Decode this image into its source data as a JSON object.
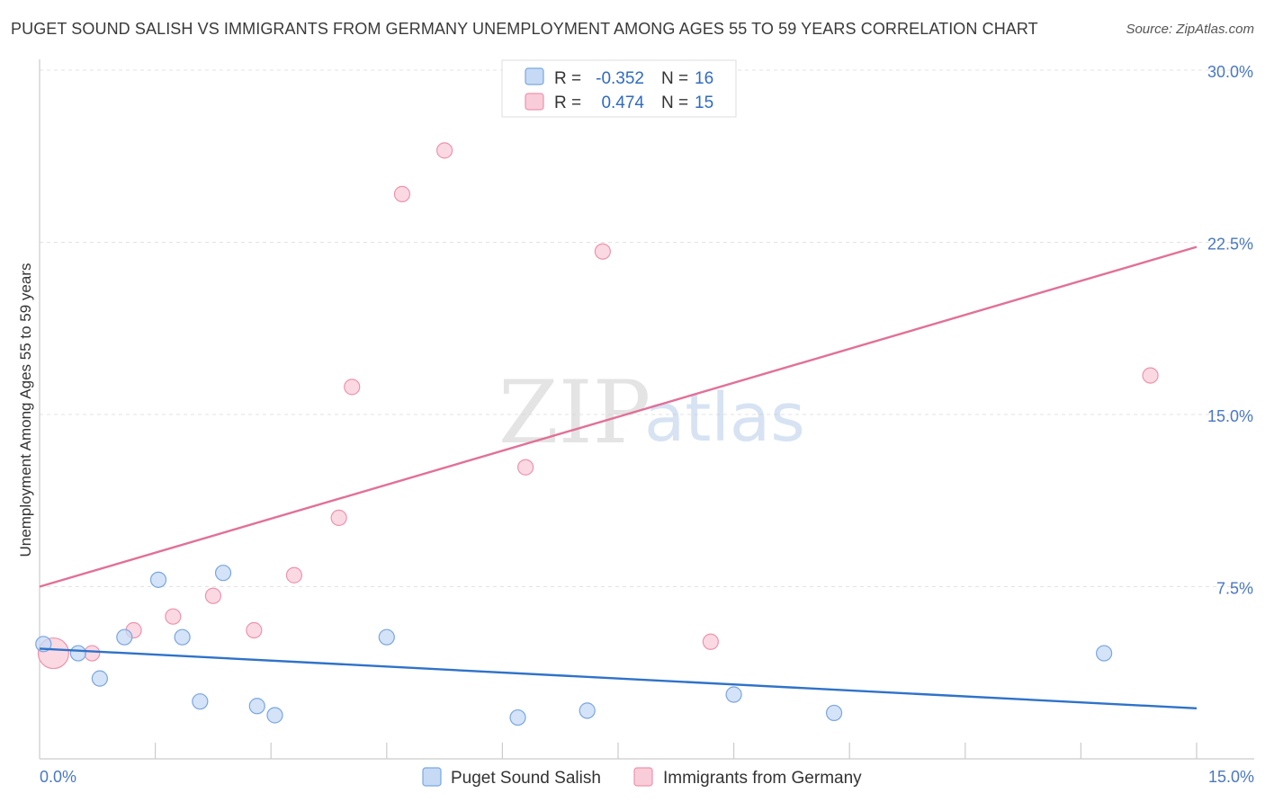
{
  "chart_data": {
    "type": "scatter",
    "title": "PUGET SOUND SALISH VS IMMIGRANTS FROM GERMANY UNEMPLOYMENT AMONG AGES 55 TO 59 YEARS CORRELATION CHART",
    "source": "Source: ZipAtlas.com",
    "xlabel": "",
    "ylabel": "Unemployment Among Ages 55 to 59 years",
    "xlim": [
      0,
      15
    ],
    "ylim": [
      0,
      30
    ],
    "x_tick_labels": [
      "0.0%",
      "15.0%"
    ],
    "y_ticks": [
      7.5,
      15.0,
      22.5,
      30.0
    ],
    "y_tick_labels": [
      "7.5%",
      "15.0%",
      "22.5%",
      "30.0%"
    ],
    "watermark": {
      "part1": "ZIP",
      "part2": "atlas"
    },
    "colors": {
      "salish_fill": "#c6daf5",
      "salish_stroke": "#7aa6e0",
      "salish_line": "#2f72c9",
      "germany_fill": "#f9ccd9",
      "germany_stroke": "#ee93ad",
      "germany_line": "#e27098"
    },
    "legend": [
      {
        "r_label": "R =",
        "r_value": "-0.352",
        "n_label": "N =",
        "n_value": "16"
      },
      {
        "r_label": "R =",
        "r_value": "0.474",
        "n_label": "N =",
        "n_value": "15"
      }
    ],
    "series": [
      {
        "name": "Puget Sound Salish",
        "points": [
          [
            0.05,
            5.0
          ],
          [
            0.5,
            4.6
          ],
          [
            0.78,
            3.5
          ],
          [
            1.1,
            5.3
          ],
          [
            1.54,
            7.8
          ],
          [
            1.85,
            5.3
          ],
          [
            2.08,
            2.5
          ],
          [
            2.38,
            8.1
          ],
          [
            2.82,
            2.3
          ],
          [
            3.05,
            1.9
          ],
          [
            4.5,
            5.3
          ],
          [
            6.2,
            1.8
          ],
          [
            7.1,
            2.1
          ],
          [
            9.0,
            2.8
          ],
          [
            10.3,
            2.0
          ],
          [
            13.8,
            4.6
          ]
        ],
        "trend": {
          "x": [
            0.0,
            15.0
          ],
          "y": [
            4.8,
            2.2
          ]
        }
      },
      {
        "name": "Immigrants from Germany",
        "points": [
          [
            0.18,
            4.6
          ],
          [
            0.68,
            4.6
          ],
          [
            1.22,
            5.6
          ],
          [
            1.73,
            6.2
          ],
          [
            2.25,
            7.1
          ],
          [
            2.78,
            5.6
          ],
          [
            3.3,
            8.0
          ],
          [
            3.88,
            10.5
          ],
          [
            4.05,
            16.2
          ],
          [
            4.7,
            24.6
          ],
          [
            5.25,
            26.5
          ],
          [
            6.3,
            12.7
          ],
          [
            7.3,
            22.1
          ],
          [
            8.7,
            5.1
          ],
          [
            14.4,
            16.7
          ]
        ],
        "big_point_index": 0,
        "trend": {
          "x": [
            0.0,
            15.0
          ],
          "y": [
            7.5,
            22.3
          ]
        }
      }
    ]
  }
}
